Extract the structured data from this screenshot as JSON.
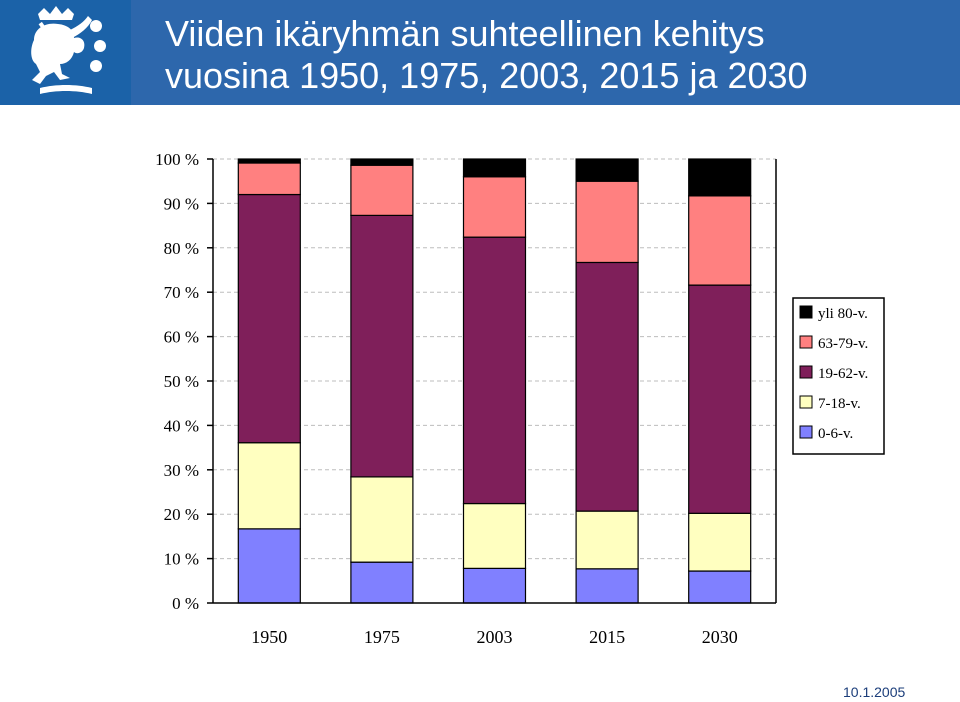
{
  "header": {
    "title_line1": "Viiden ikäryhmän suhteellinen kehitys",
    "title_line2": "vuosina 1950, 1975, 2003, 2015 ja 2030",
    "logo_icon": "finnish-lion-coat-of-arms"
  },
  "footer": {
    "date": "10.1.2005"
  },
  "colors": {
    "header_bg": "#2d67ac",
    "logo_bg": "#1b62a8"
  },
  "chart_data": {
    "type": "bar",
    "stacked": true,
    "percent": true,
    "categories": [
      "1950",
      "1975",
      "2003",
      "2015",
      "2030"
    ],
    "series": [
      {
        "name": "0-6-v.",
        "color": "#8080ff",
        "values": [
          16.7,
          9.2,
          7.8,
          7.7,
          7.2
        ]
      },
      {
        "name": "7-18-v.",
        "color": "#ffffc0",
        "values": [
          19.4,
          19.2,
          14.6,
          13.0,
          13.0
        ]
      },
      {
        "name": "19-62-v.",
        "color": "#7f1f5a",
        "values": [
          55.9,
          58.9,
          60.0,
          56.0,
          51.4
        ]
      },
      {
        "name": "63-79-v.",
        "color": "#ff8080",
        "values": [
          7.1,
          11.3,
          13.6,
          18.3,
          20.1
        ]
      },
      {
        "name": "yli 80-v.",
        "color": "#000000",
        "values": [
          0.9,
          1.4,
          4.0,
          5.0,
          8.3
        ]
      }
    ],
    "ylim": [
      0,
      100
    ],
    "yticks": [
      "0 %",
      "10 %",
      "20 %",
      "30 %",
      "40 %",
      "50 %",
      "60 %",
      "70 %",
      "80 %",
      "90 %",
      "100 %"
    ],
    "xlabel": "",
    "ylabel": "",
    "grid": true,
    "legend": {
      "position": "right",
      "entries": [
        "yli 80-v.",
        "63-79-v.",
        "19-62-v.",
        "7-18-v.",
        "0-6-v."
      ]
    }
  }
}
